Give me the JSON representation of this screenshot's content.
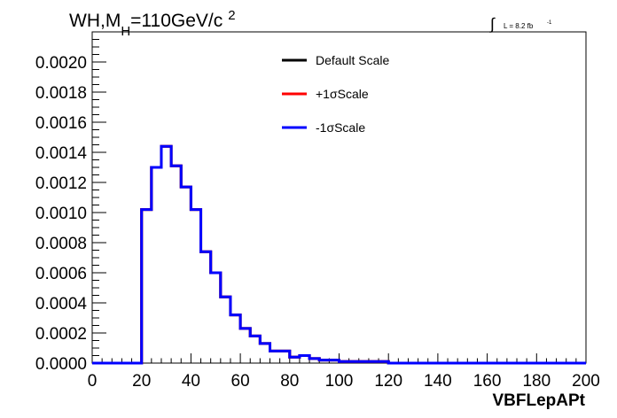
{
  "header": {
    "title_main": "WH,M",
    "title_sub": "H",
    "title_rest": "=110GeV/c",
    "title_sup": "2",
    "lumi_label": "L = 8.2 fb",
    "lumi_sup": "-1"
  },
  "chart_data": {
    "type": "line",
    "style": "step-histogram",
    "xlabel": "VBFLepAPt",
    "ylabel": "",
    "xlim": [
      0,
      200
    ],
    "ylim": [
      0,
      0.0022
    ],
    "x_ticks": [
      0,
      20,
      40,
      60,
      80,
      100,
      120,
      140,
      160,
      180,
      200
    ],
    "x_tick_labels": [
      "0",
      "20",
      "40",
      "60",
      "80",
      "100",
      "120",
      "140",
      "160",
      "180",
      "200"
    ],
    "y_ticks": [
      0,
      0.0002,
      0.0004,
      0.0006,
      0.0008,
      0.001,
      0.0012,
      0.0014,
      0.0016,
      0.0018,
      0.002
    ],
    "y_tick_labels": [
      "0.0000",
      "0.0002",
      "0.0004",
      "0.0006",
      "0.0008",
      "0.0010",
      "0.0012",
      "0.0014",
      "0.0016",
      "0.0018",
      "0.0020"
    ],
    "bin_edges": [
      0,
      4,
      8,
      12,
      16,
      20,
      24,
      28,
      32,
      36,
      40,
      44,
      48,
      52,
      56,
      60,
      64,
      68,
      72,
      76,
      80,
      84,
      88,
      92,
      96,
      100,
      104,
      108,
      112,
      116,
      120,
      124,
      128,
      132,
      136,
      140,
      144,
      148,
      152,
      156,
      160,
      164,
      168,
      172,
      176,
      180,
      184,
      188,
      192,
      196,
      200
    ],
    "series": [
      {
        "name": "Default Scale",
        "color": "#000000",
        "values": [
          0,
          0,
          0,
          0,
          0,
          0.00102,
          0.0013,
          0.00144,
          0.00131,
          0.00117,
          0.00102,
          0.00074,
          0.0006,
          0.00044,
          0.00032,
          0.00023,
          0.00018,
          0.00013,
          8e-05,
          8e-05,
          4e-05,
          5e-05,
          3e-05,
          2e-05,
          2e-05,
          1e-05,
          1e-05,
          1e-05,
          1e-05,
          1e-05,
          0,
          0,
          0,
          0,
          0,
          0,
          0,
          0,
          0,
          0,
          0,
          0,
          0,
          0,
          0,
          0,
          0,
          0,
          0,
          0
        ]
      },
      {
        "name": "+1σScale",
        "color": "#ff0000",
        "values": [
          0,
          0,
          0,
          0,
          0,
          0.00102,
          0.0013,
          0.00144,
          0.00131,
          0.00117,
          0.00102,
          0.00074,
          0.0006,
          0.00044,
          0.00032,
          0.00023,
          0.00018,
          0.00013,
          8e-05,
          8e-05,
          4e-05,
          5e-05,
          3e-05,
          2e-05,
          2e-05,
          1e-05,
          1e-05,
          1e-05,
          1e-05,
          1e-05,
          0,
          0,
          0,
          0,
          0,
          0,
          0,
          0,
          0,
          0,
          0,
          0,
          0,
          0,
          0,
          0,
          0,
          0,
          0,
          0
        ]
      },
      {
        "name": "-1σScale",
        "color": "#0000ff",
        "values": [
          0,
          0,
          0,
          0,
          0,
          0.00102,
          0.0013,
          0.00144,
          0.00131,
          0.00117,
          0.00102,
          0.00074,
          0.0006,
          0.00044,
          0.00032,
          0.00023,
          0.00018,
          0.00013,
          8e-05,
          8e-05,
          4e-05,
          5e-05,
          3e-05,
          2e-05,
          2e-05,
          1e-05,
          1e-05,
          1e-05,
          1e-05,
          1e-05,
          0,
          0,
          0,
          0,
          0,
          0,
          0,
          0,
          0,
          0,
          0,
          0,
          0,
          0,
          0,
          0,
          0,
          0,
          0,
          0
        ]
      }
    ],
    "legend": {
      "placement": "top-center",
      "entries": [
        "Default Scale",
        "+1σScale",
        "-1σScale"
      ]
    },
    "grid": false
  }
}
